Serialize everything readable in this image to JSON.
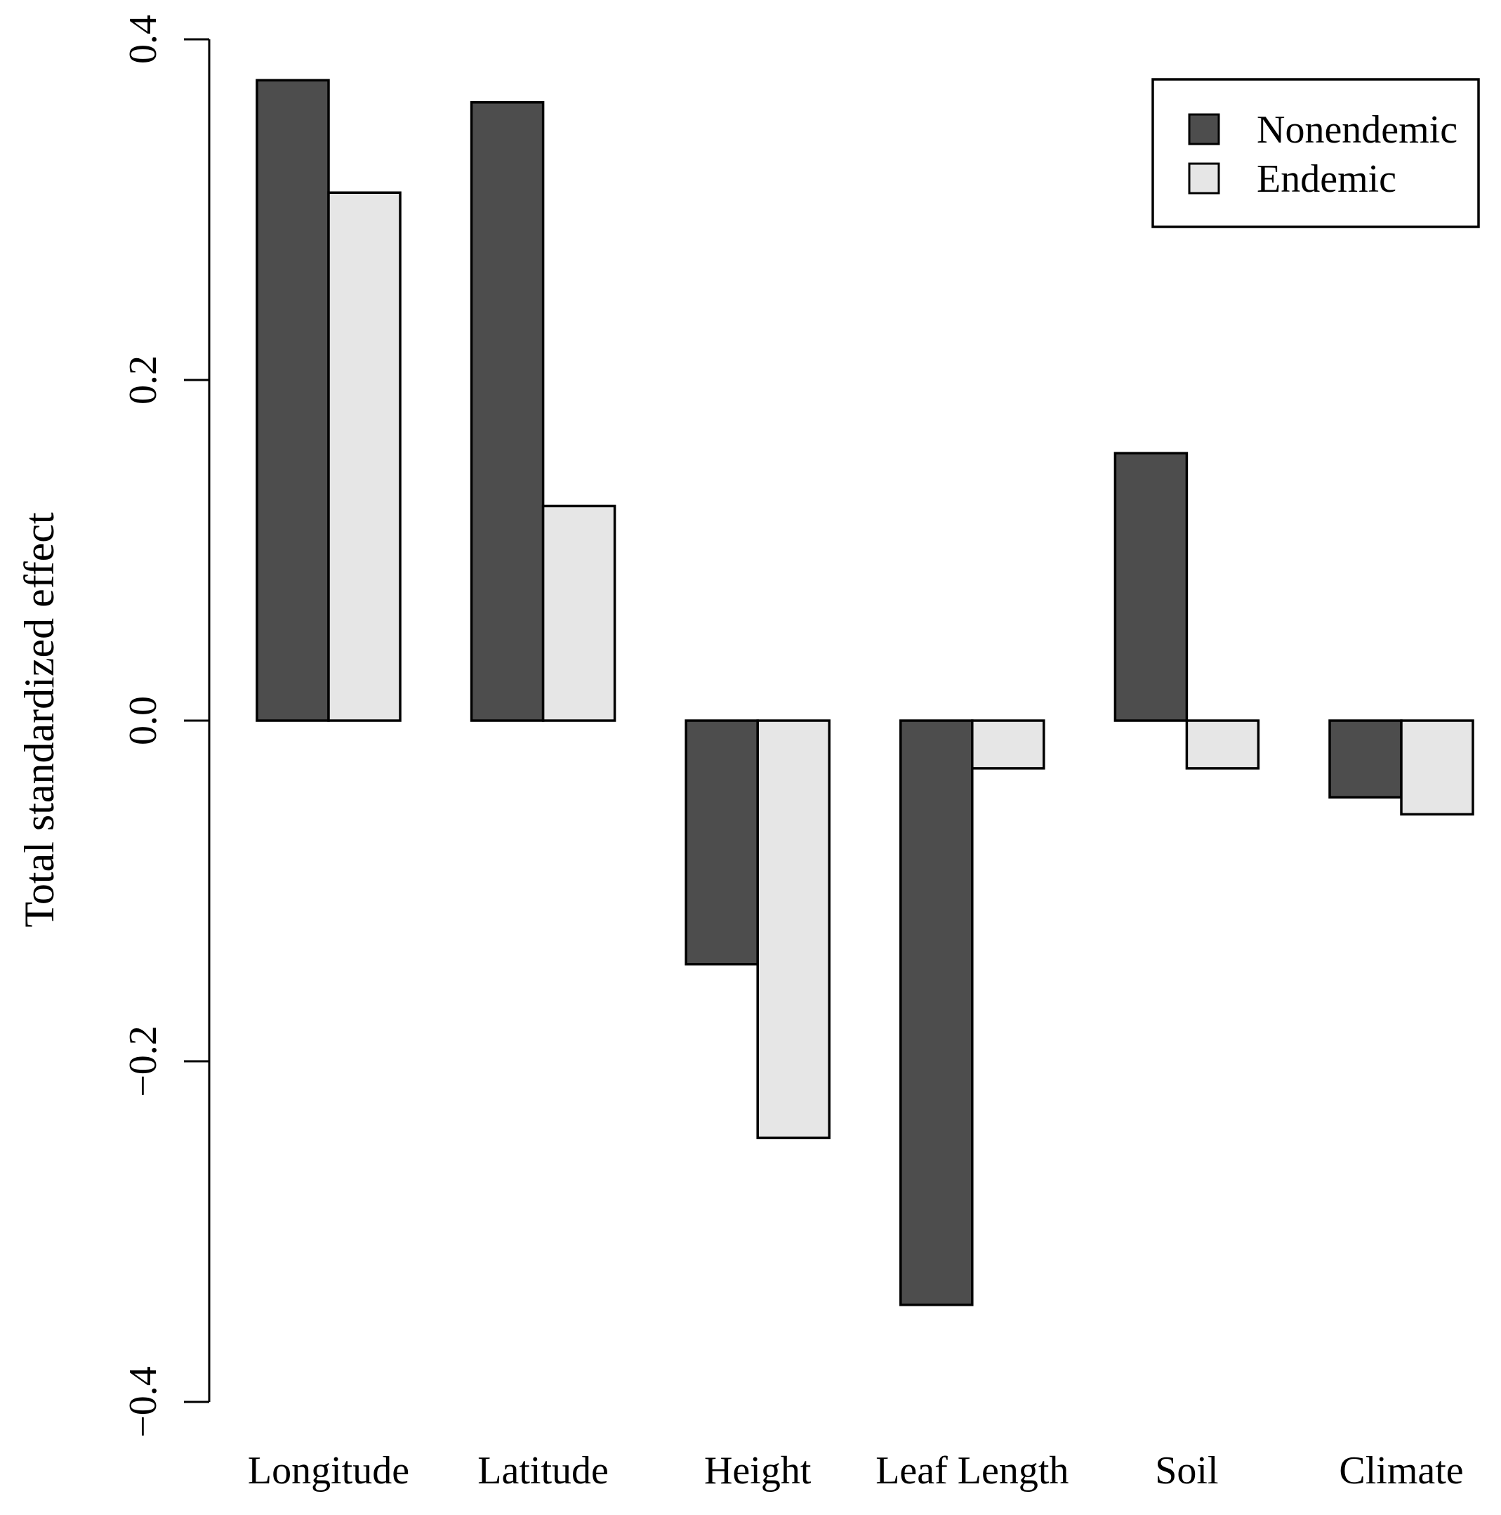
{
  "chart_data": {
    "type": "bar",
    "title": "",
    "xlabel": "",
    "ylabel": "Total standardized effect",
    "ylim": [
      -0.4,
      0.4
    ],
    "yticks": [
      -0.4,
      -0.2,
      0.0,
      0.2,
      0.4
    ],
    "ytick_labels": [
      "−0.4",
      "−0.2",
      "0.0",
      "0.2",
      "0.4"
    ],
    "categories": [
      "Longitude",
      "Latitude",
      "Height",
      "Leaf Length",
      "Soil",
      "Climate"
    ],
    "series": [
      {
        "name": "Nonendemic",
        "color": "#4d4d4d",
        "values": [
          0.376,
          0.363,
          -0.143,
          -0.343,
          0.157,
          -0.045
        ]
      },
      {
        "name": "Endemic",
        "color": "#e6e6e6",
        "values": [
          0.31,
          0.126,
          -0.245,
          -0.028,
          -0.028,
          -0.055
        ]
      }
    ],
    "legend_position": "top-right",
    "grid": false
  }
}
